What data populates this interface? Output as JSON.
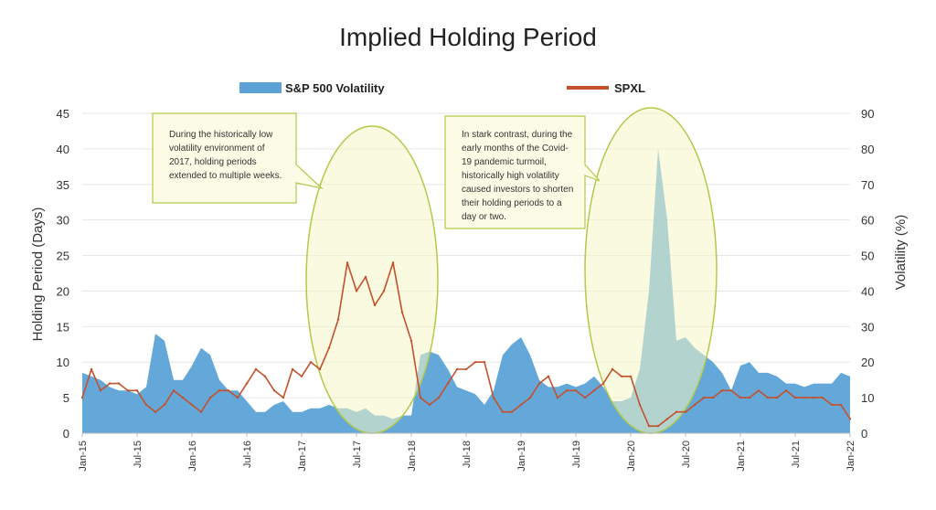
{
  "chart_data": {
    "type": "area",
    "title": "Implied Holding Period",
    "ylabel_left": "Holding Period (Days)",
    "ylabel_right": "Volatility (%)",
    "y_left_ticks": [
      "0",
      "5",
      "10",
      "15",
      "20",
      "25",
      "30",
      "35",
      "40",
      "45"
    ],
    "y_right_ticks": [
      "0",
      "10",
      "20",
      "30",
      "40",
      "50",
      "60",
      "70",
      "80",
      "90"
    ],
    "ylim_left": [
      0,
      45
    ],
    "ylim_right": [
      0,
      90
    ],
    "x_ticks": [
      "Jan-15",
      "Jul-15",
      "Jan-16",
      "Jul-16",
      "Jan-17",
      "Jul-17",
      "Jan-18",
      "Jul-18",
      "Jan-19",
      "Jul-19",
      "Jan-20",
      "Jul-20",
      "Jan-21",
      "Jul-21",
      "Jan-22"
    ],
    "grid": true,
    "legend_position": "top",
    "series": [
      {
        "name": "S&P 500 Volatility",
        "type": "area",
        "axis": "right",
        "color": "#5ba3d6",
        "x": [
          "Jan-15",
          "Feb-15",
          "Mar-15",
          "Apr-15",
          "May-15",
          "Jun-15",
          "Jul-15",
          "Aug-15",
          "Sep-15",
          "Oct-15",
          "Nov-15",
          "Dec-15",
          "Jan-16",
          "Feb-16",
          "Mar-16",
          "Apr-16",
          "May-16",
          "Jun-16",
          "Jul-16",
          "Aug-16",
          "Sep-16",
          "Oct-16",
          "Nov-16",
          "Dec-16",
          "Jan-17",
          "Feb-17",
          "Mar-17",
          "Apr-17",
          "May-17",
          "Jun-17",
          "Jul-17",
          "Aug-17",
          "Sep-17",
          "Oct-17",
          "Nov-17",
          "Dec-17",
          "Jan-18",
          "Feb-18",
          "Mar-18",
          "Apr-18",
          "May-18",
          "Jun-18",
          "Jul-18",
          "Aug-18",
          "Sep-18",
          "Oct-18",
          "Nov-18",
          "Dec-18",
          "Jan-19",
          "Feb-19",
          "Mar-19",
          "Apr-19",
          "May-19",
          "Jun-19",
          "Jul-19",
          "Aug-19",
          "Sep-19",
          "Oct-19",
          "Nov-19",
          "Dec-19",
          "Jan-20",
          "Feb-20",
          "Mar-20",
          "Apr-20",
          "May-20",
          "Jun-20",
          "Jul-20",
          "Aug-20",
          "Sep-20",
          "Oct-20",
          "Nov-20",
          "Dec-20",
          "Jan-21",
          "Feb-21",
          "Mar-21",
          "Apr-21",
          "May-21",
          "Jun-21",
          "Jul-21",
          "Aug-21",
          "Sep-21",
          "Oct-21",
          "Nov-21",
          "Dec-21",
          "Jan-22"
        ],
        "values": [
          17,
          16,
          15,
          13,
          12,
          12,
          11,
          13,
          28,
          26,
          15,
          15,
          19,
          24,
          22,
          15,
          12,
          12,
          9,
          6,
          6,
          8,
          9,
          6,
          6,
          7,
          7,
          8,
          7,
          7,
          6,
          7,
          5,
          5,
          4,
          5,
          5,
          22,
          23,
          22,
          18,
          13,
          12,
          11,
          8,
          12,
          22,
          25,
          27,
          22,
          15,
          13,
          13,
          14,
          13,
          14,
          16,
          13,
          9,
          9,
          10,
          18,
          40,
          80,
          60,
          26,
          27,
          24,
          22,
          20,
          17,
          12,
          19,
          20,
          17,
          17,
          16,
          14,
          14,
          13,
          14,
          14,
          14,
          17,
          16
        ]
      },
      {
        "name": "SPXL",
        "type": "line",
        "axis": "left",
        "color": "#c5512c",
        "x": [
          "Jan-15",
          "Feb-15",
          "Mar-15",
          "Apr-15",
          "May-15",
          "Jun-15",
          "Jul-15",
          "Aug-15",
          "Sep-15",
          "Oct-15",
          "Nov-15",
          "Dec-15",
          "Jan-16",
          "Feb-16",
          "Mar-16",
          "Apr-16",
          "May-16",
          "Jun-16",
          "Jul-16",
          "Aug-16",
          "Sep-16",
          "Oct-16",
          "Nov-16",
          "Dec-16",
          "Jan-17",
          "Feb-17",
          "Mar-17",
          "Apr-17",
          "May-17",
          "Jun-17",
          "Jul-17",
          "Aug-17",
          "Sep-17",
          "Oct-17",
          "Nov-17",
          "Dec-17",
          "Jan-18",
          "Feb-18",
          "Mar-18",
          "Apr-18",
          "May-18",
          "Jun-18",
          "Jul-18",
          "Aug-18",
          "Sep-18",
          "Oct-18",
          "Nov-18",
          "Dec-18",
          "Jan-19",
          "Feb-19",
          "Mar-19",
          "Apr-19",
          "May-19",
          "Jun-19",
          "Jul-19",
          "Aug-19",
          "Sep-19",
          "Oct-19",
          "Nov-19",
          "Dec-19",
          "Jan-20",
          "Feb-20",
          "Mar-20",
          "Apr-20",
          "May-20",
          "Jun-20",
          "Jul-20",
          "Aug-20",
          "Sep-20",
          "Oct-20",
          "Nov-20",
          "Dec-20",
          "Jan-21",
          "Feb-21",
          "Mar-21",
          "Apr-21",
          "May-21",
          "Jun-21",
          "Jul-21",
          "Aug-21",
          "Sep-21",
          "Oct-21",
          "Nov-21",
          "Dec-21",
          "Jan-22"
        ],
        "values": [
          5,
          9,
          6,
          7,
          7,
          6,
          6,
          4,
          3,
          4,
          6,
          5,
          4,
          3,
          5,
          6,
          6,
          5,
          7,
          9,
          8,
          6,
          5,
          9,
          8,
          10,
          9,
          12,
          16,
          24,
          20,
          22,
          18,
          20,
          24,
          17,
          13,
          5,
          4,
          5,
          7,
          9,
          9,
          10,
          10,
          5,
          3,
          3,
          4,
          5,
          7,
          8,
          5,
          6,
          6,
          5,
          6,
          7,
          9,
          8,
          8,
          4,
          1,
          1,
          2,
          3,
          3,
          4,
          5,
          5,
          6,
          6,
          5,
          5,
          6,
          5,
          5,
          6,
          5,
          5,
          5,
          5,
          4,
          4,
          2
        ]
      }
    ],
    "annotations": [
      "During the historically low volatility environment of 2017, holding periods extended to multiple weeks.",
      "In stark contrast, during the early months of the Covid-19 pandemic turmoil, historically high volatility caused investors to shorten their holding periods to a day or two."
    ]
  }
}
